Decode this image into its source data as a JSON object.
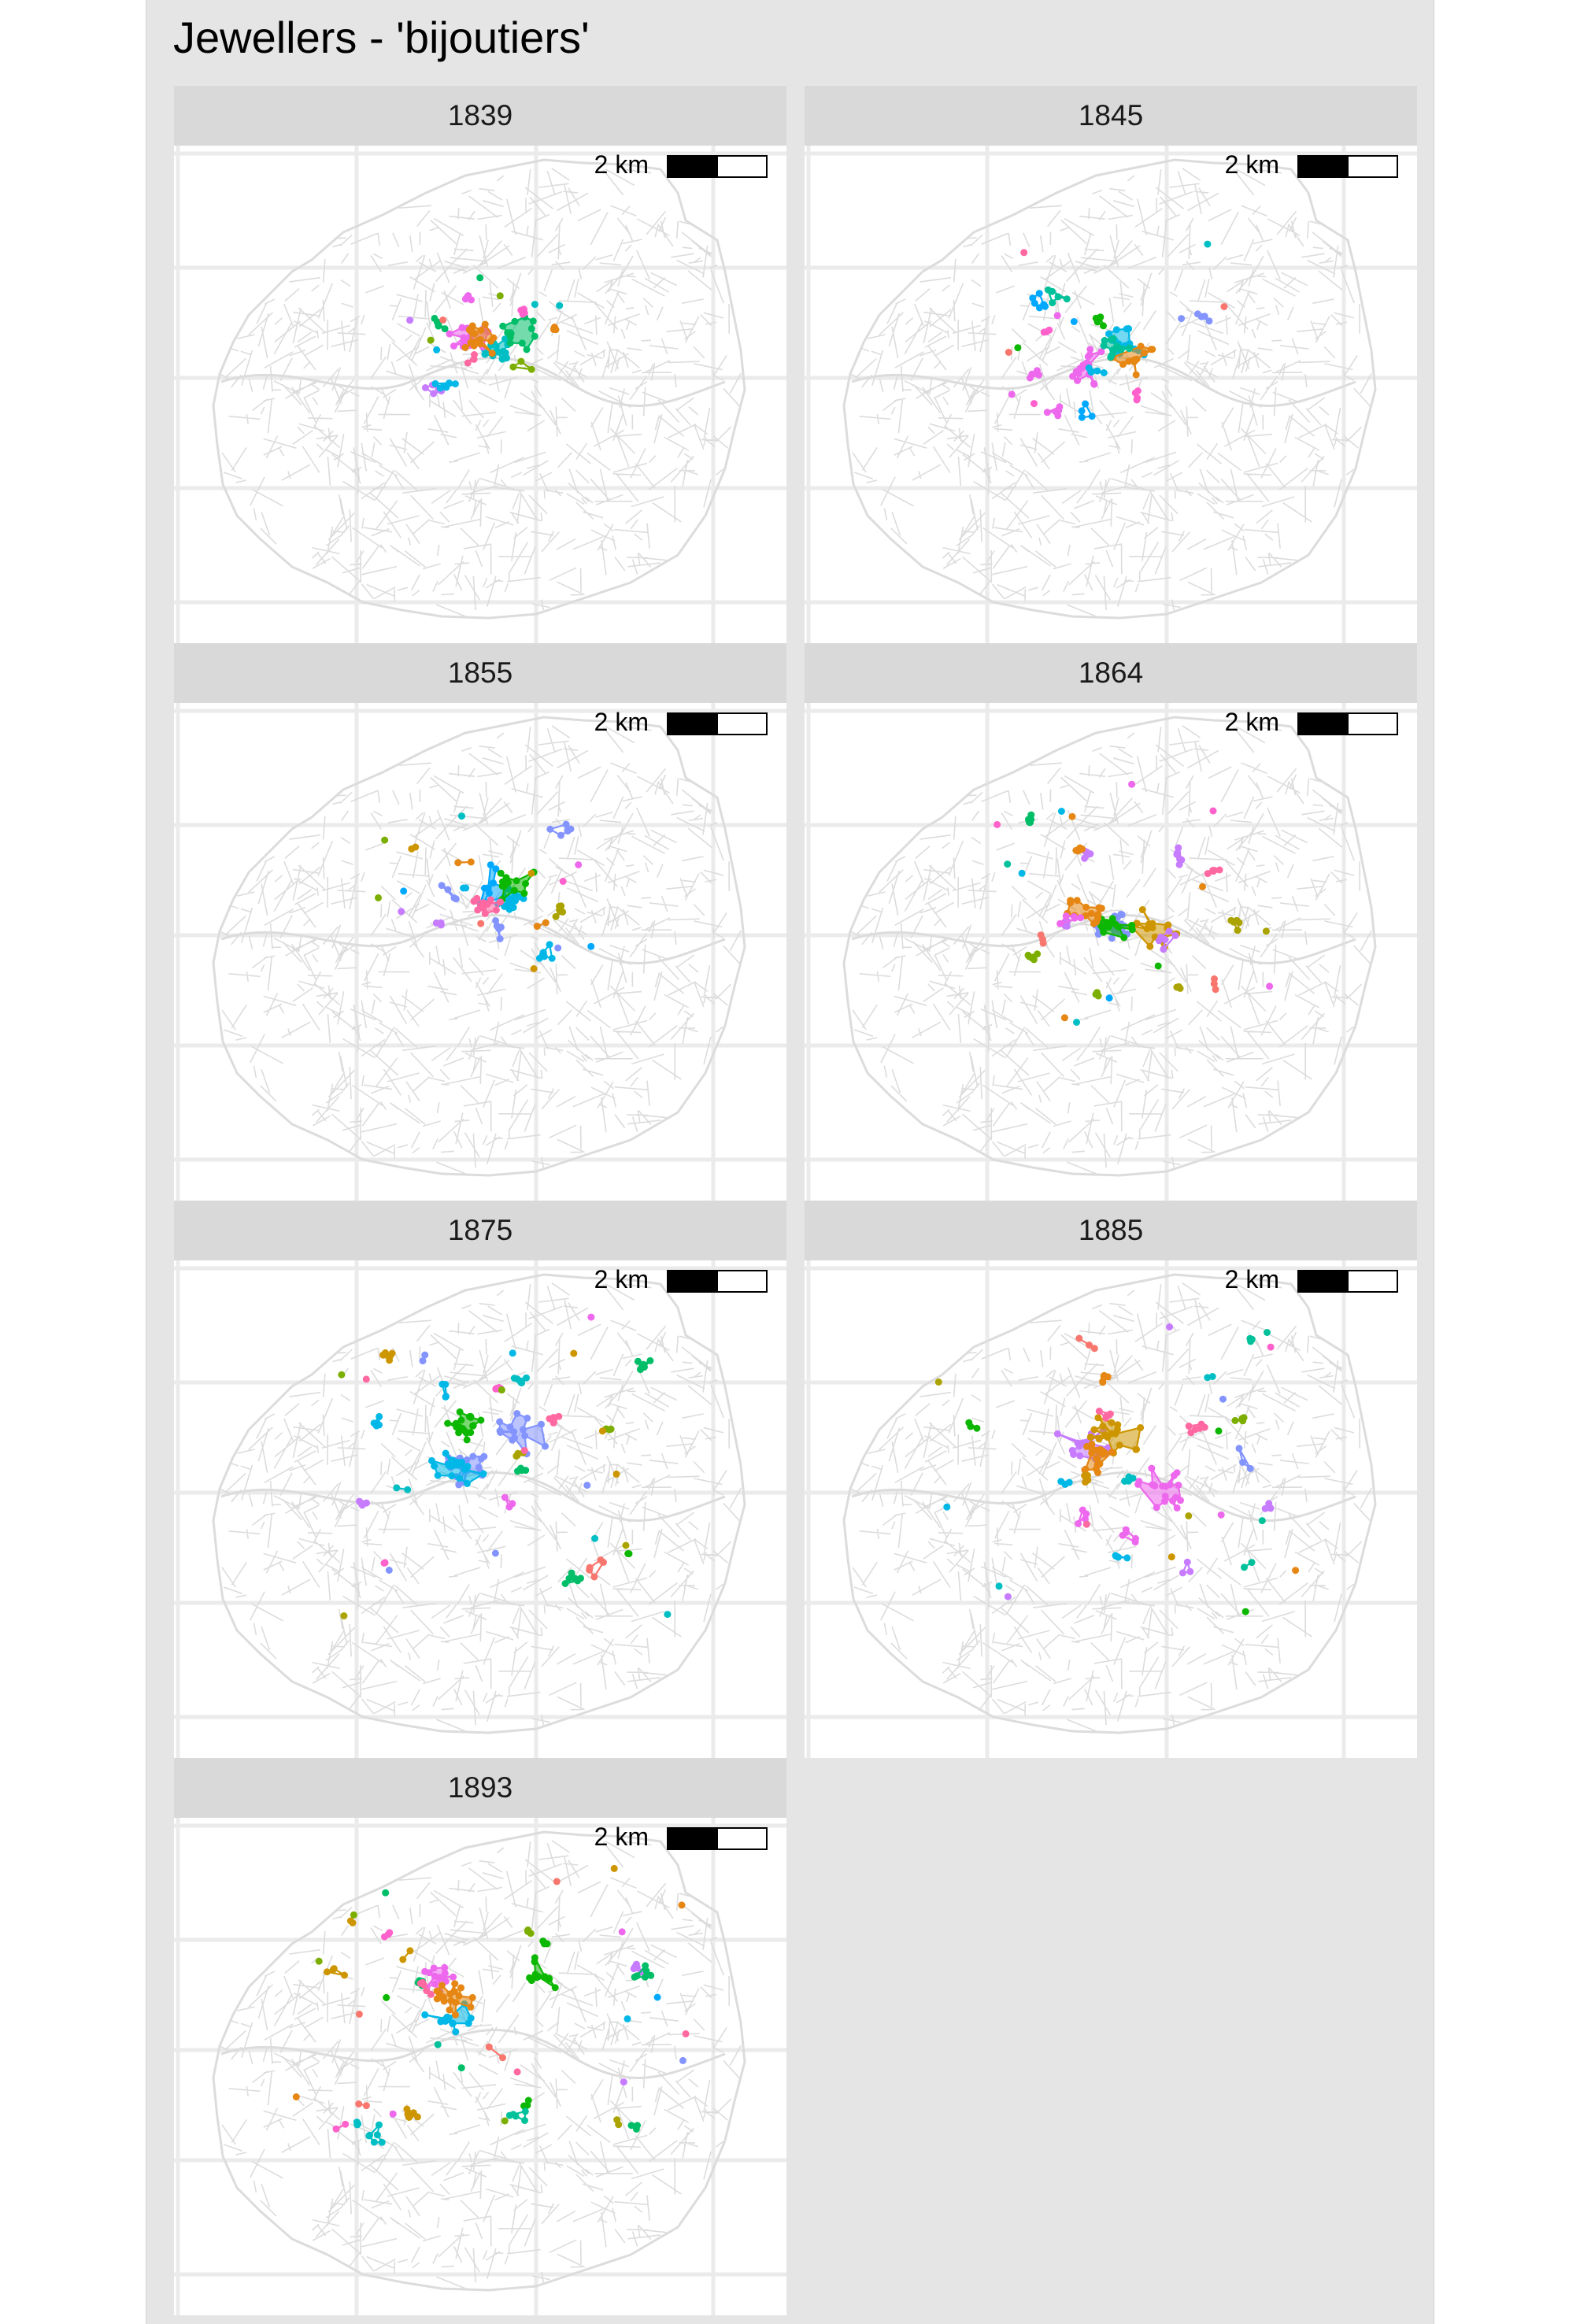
{
  "title": "Jewellers - 'bijoutiers'",
  "scale_bar_label": "2 km",
  "colors": {
    "figure_bg": "#e5e5e5",
    "strip_bg": "#d9d9d9",
    "street_lines": "#dcdcdc",
    "grid_lines": "#ebebeb",
    "cluster_palette": [
      "#f8766d",
      "#e68613",
      "#cd9600",
      "#aba300",
      "#7cae00",
      "#0cb702",
      "#00be67",
      "#00c19a",
      "#00bfc4",
      "#00b8e7",
      "#00a9ff",
      "#8494ff",
      "#c77cff",
      "#ed68ed",
      "#ff61cc",
      "#ff68a1"
    ]
  },
  "panels": [
    {
      "year": "1839"
    },
    {
      "year": "1845"
    },
    {
      "year": "1855"
    },
    {
      "year": "1864"
    },
    {
      "year": "1875"
    },
    {
      "year": "1885"
    },
    {
      "year": "1893"
    }
  ]
}
